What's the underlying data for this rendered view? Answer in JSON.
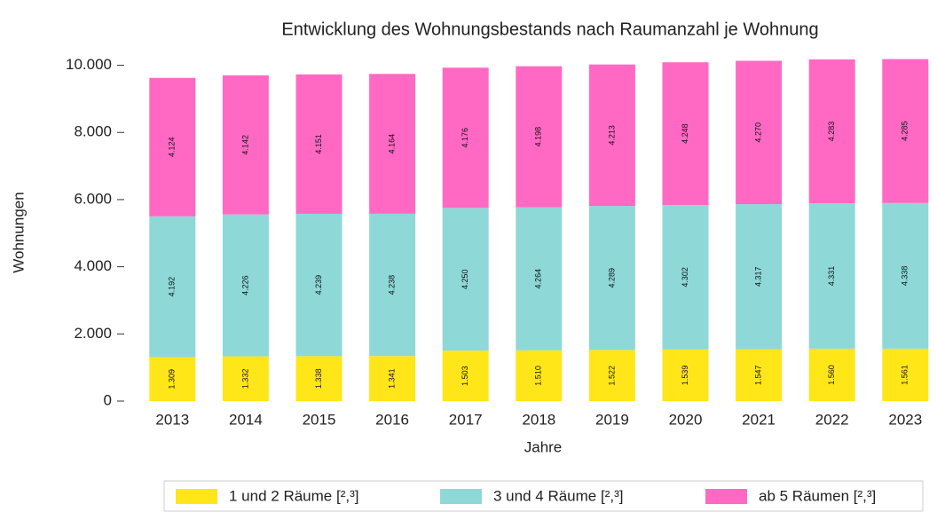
{
  "chart_data": {
    "type": "stacked-bar",
    "title": "Entwicklung des Wohnungsbestands nach Raumanzahl je Wohnung",
    "x_label": "Jahre",
    "y_label": "Wohnungen",
    "categories": [
      "2013",
      "2014",
      "2015",
      "2016",
      "2017",
      "2018",
      "2019",
      "2020",
      "2021",
      "2022",
      "2023"
    ],
    "series": [
      {
        "name": "1 und 2 Räume [²,³]",
        "color": "#ffe619",
        "values": [
          1309,
          1332,
          1338,
          1341,
          1503,
          1510,
          1522,
          1539,
          1547,
          1560,
          1561
        ],
        "value_labels": [
          "1.309",
          "1.332",
          "1.338",
          "1.341",
          "1.503",
          "1.510",
          "1.522",
          "1.539",
          "1.547",
          "1.560",
          "1.561"
        ]
      },
      {
        "name": "3 und 4 Räume [²,³]",
        "color": "#8ed8d8",
        "values": [
          4192,
          4226,
          4239,
          4238,
          4250,
          4264,
          4289,
          4302,
          4317,
          4331,
          4338
        ],
        "value_labels": [
          "4.192",
          "4.226",
          "4.239",
          "4.238",
          "4.250",
          "4.264",
          "4.289",
          "4.302",
          "4.317",
          "4.331",
          "4.338"
        ]
      },
      {
        "name": "ab 5 Räumen [²,³]",
        "color": "#ff69c4",
        "values": [
          4124,
          4142,
          4151,
          4164,
          4176,
          4198,
          4213,
          4248,
          4270,
          4283,
          4285
        ],
        "value_labels": [
          "4.124",
          "4.142",
          "4.151",
          "4.164",
          "4.176",
          "4.198",
          "4.213",
          "4.248",
          "4.270",
          "4.283",
          "4.285"
        ]
      }
    ],
    "ylim": [
      0,
      10200
    ],
    "yticks": [
      0,
      {
        "value": 2000,
        "label": "2.000"
      },
      {
        "value": 4000,
        "label": "4.000"
      },
      {
        "value": 6000,
        "label": "6.000"
      },
      {
        "value": 8000,
        "label": "8.000"
      },
      {
        "value": 10000,
        "label": "10.000"
      }
    ],
    "legend": "bottom"
  }
}
